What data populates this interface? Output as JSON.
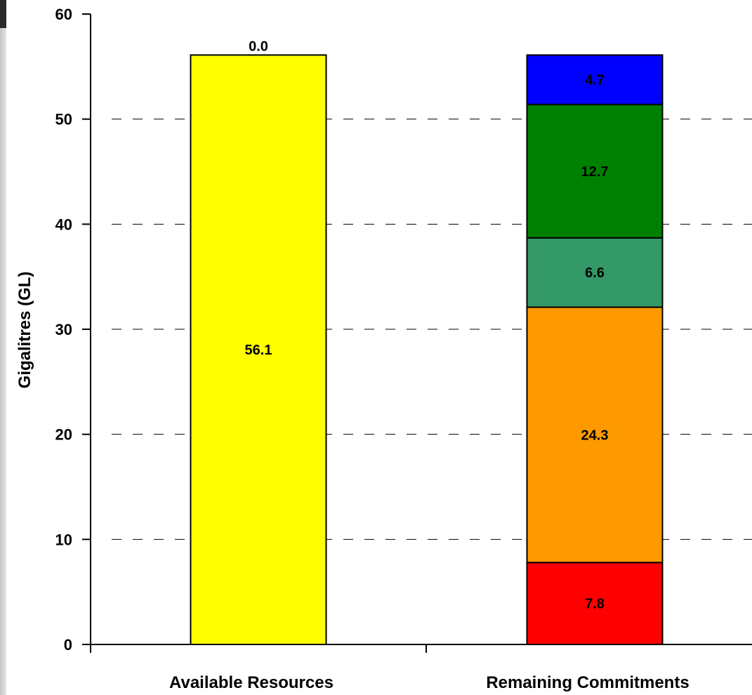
{
  "chart_data": {
    "type": "bar",
    "stacked": true,
    "ylabel": "Gigalitres (GL)",
    "xlabel": "",
    "ylim": [
      0,
      60
    ],
    "yticks": [
      "0",
      "10",
      "20",
      "30",
      "40",
      "50",
      "60"
    ],
    "grid": true,
    "categories": [
      "Available Resources",
      "Remaining Commitments"
    ],
    "series": [
      {
        "values": [
          56.1,
          7.8
        ],
        "labels": [
          "56.1",
          "7.8"
        ],
        "colors": [
          "#ffff00",
          "#ff0000"
        ]
      },
      {
        "values": [
          0,
          24.3
        ],
        "labels": [
          "",
          "24.3"
        ],
        "colors": [
          "#ffff00",
          "#ff9900"
        ]
      },
      {
        "values": [
          0,
          6.6
        ],
        "labels": [
          "",
          "6.6"
        ],
        "colors": [
          "#ffff00",
          "#339966"
        ]
      },
      {
        "values": [
          0,
          12.7
        ],
        "labels": [
          "",
          "12.7"
        ],
        "colors": [
          "#ffff00",
          "#008000"
        ]
      },
      {
        "values": [
          0,
          4.7
        ],
        "labels": [
          "",
          "4.7"
        ],
        "colors": [
          "#ffff00",
          "#0000ff"
        ]
      }
    ],
    "annotations": [
      {
        "category": "Available Resources",
        "text": "0.0",
        "position": "above-bar"
      }
    ]
  }
}
